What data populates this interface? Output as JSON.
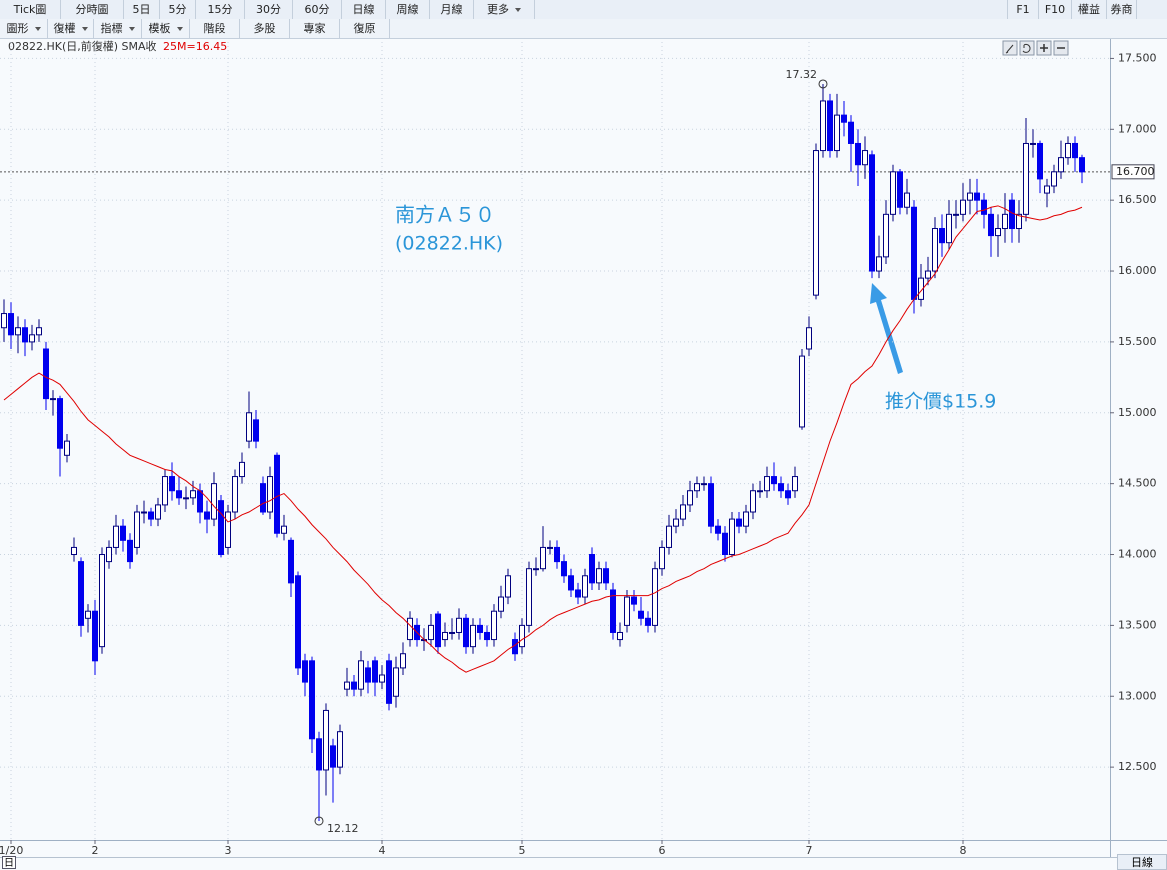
{
  "toolbar": {
    "periods": [
      "Tick圖",
      "分時圖",
      "5日",
      "5分",
      "15分",
      "30分",
      "60分",
      "日線",
      "周線",
      "月線"
    ],
    "more": "更多",
    "right": [
      "F1",
      "F10",
      "權益",
      "券商"
    ],
    "tools": [
      "圖形",
      "復權",
      "指標",
      "模板"
    ],
    "actions": [
      "階段",
      "多股",
      "專家",
      "復原"
    ]
  },
  "chart_data": {
    "type": "candlestick",
    "title": "02822.HK(日,前復權) SMA收",
    "legend_label": "25M=16.45",
    "annotations": [
      "南方Ａ５０",
      "(02822.HK)",
      "推介價$15.9"
    ],
    "categories": [
      null,
      "1/20",
      null,
      null,
      null,
      null,
      null,
      null,
      null,
      null,
      null,
      null,
      null,
      "2",
      null,
      null,
      null,
      null,
      null,
      null,
      null,
      null,
      null,
      null,
      null,
      null,
      null,
      null,
      null,
      null,
      null,
      null,
      "3",
      null,
      null,
      null,
      null,
      null,
      null,
      null,
      null,
      null,
      null,
      null,
      null,
      null,
      null,
      null,
      null,
      null,
      null,
      null,
      null,
      null,
      "4",
      null,
      null,
      null,
      null,
      null,
      null,
      null,
      null,
      null,
      null,
      null,
      null,
      null,
      null,
      null,
      null,
      null,
      null,
      null,
      "5",
      null,
      null,
      null,
      null,
      null,
      null,
      null,
      null,
      null,
      null,
      null,
      null,
      null,
      null,
      null,
      null,
      null,
      null,
      null,
      "6",
      null,
      null,
      null,
      null,
      null,
      null,
      null,
      null,
      null,
      null,
      null,
      null,
      null,
      null,
      null,
      null,
      null,
      null,
      null,
      null,
      "7",
      null,
      null,
      null,
      null,
      null,
      null,
      null,
      null,
      null,
      null,
      null,
      null,
      null,
      null,
      null,
      null,
      null,
      null,
      null,
      null,
      null,
      "8",
      null,
      null,
      null,
      null,
      null,
      null,
      null,
      null,
      null,
      null,
      null,
      null,
      null,
      null,
      null,
      null,
      null
    ],
    "open": [
      15.6,
      15.7,
      15.55,
      15.6,
      15.5,
      15.55,
      15.45,
      15.1,
      15.1,
      14.7,
      14.0,
      13.95,
      13.55,
      13.6,
      13.35,
      13.95,
      14.05,
      14.2,
      14.1,
      14.05,
      14.3,
      14.3,
      14.25,
      14.35,
      14.55,
      14.45,
      14.4,
      14.4,
      14.45,
      14.3,
      14.25,
      14.38,
      14.05,
      14.3,
      14.55,
      14.8,
      14.95,
      14.5,
      14.3,
      14.7,
      14.15,
      14.1,
      13.85,
      13.25,
      13.25,
      12.7,
      12.48,
      12.65,
      12.5,
      13.05,
      13.1,
      13.05,
      13.2,
      13.25,
      13.1,
      13.25,
      13.0,
      13.2,
      13.4,
      13.5,
      13.4,
      13.4,
      13.58,
      13.4,
      13.45,
      13.45,
      13.55,
      13.35,
      13.5,
      13.45,
      13.4,
      13.6,
      13.7,
      13.4,
      13.35,
      13.5,
      13.9,
      13.9,
      14.05,
      14.05,
      13.95,
      13.85,
      13.75,
      13.7,
      14.0,
      13.8,
      13.9,
      13.75,
      13.4,
      13.5,
      13.7,
      13.6,
      13.55,
      13.5,
      13.9,
      14.05,
      14.2,
      14.25,
      14.35,
      14.45,
      14.5,
      14.5,
      14.2,
      14.15,
      14.0,
      14.25,
      14.2,
      14.3,
      14.45,
      14.45,
      14.55,
      14.5,
      14.45,
      14.45,
      14.9,
      15.45,
      15.83,
      16.85,
      17.2,
      16.85,
      17.1,
      17.05,
      16.9,
      16.75,
      16.82,
      16.0,
      16.1,
      16.4,
      16.7,
      16.45,
      16.45,
      15.8,
      15.95,
      16.0,
      16.3,
      16.2,
      16.4,
      16.4,
      16.5,
      16.55,
      16.5,
      16.4,
      16.25,
      16.3,
      16.5,
      16.3,
      16.4,
      16.9,
      16.9,
      16.55,
      16.6,
      16.7,
      16.8,
      16.9,
      16.8
    ],
    "high": [
      15.8,
      15.78,
      15.68,
      15.66,
      15.62,
      15.66,
      15.5,
      15.16,
      15.12,
      14.85,
      14.12,
      13.98,
      13.65,
      13.68,
      14.05,
      14.1,
      14.28,
      14.25,
      14.15,
      14.35,
      14.38,
      14.33,
      14.4,
      14.6,
      14.65,
      14.55,
      14.48,
      14.52,
      14.5,
      14.38,
      14.58,
      14.42,
      14.35,
      14.6,
      14.72,
      15.15,
      15.02,
      14.55,
      14.62,
      14.72,
      14.28,
      14.12,
      13.88,
      13.3,
      13.28,
      12.75,
      12.95,
      12.7,
      12.8,
      13.2,
      13.15,
      13.32,
      13.25,
      13.28,
      13.22,
      13.3,
      13.28,
      13.38,
      13.6,
      13.55,
      13.48,
      13.58,
      13.6,
      13.52,
      13.55,
      13.62,
      13.58,
      13.55,
      13.55,
      13.5,
      13.65,
      13.78,
      13.9,
      13.45,
      13.55,
      13.95,
      13.98,
      14.2,
      14.1,
      14.1,
      14.0,
      13.9,
      13.8,
      13.9,
      14.05,
      13.95,
      13.95,
      13.8,
      13.52,
      13.75,
      13.75,
      13.7,
      13.6,
      13.95,
      14.1,
      14.28,
      14.32,
      14.42,
      14.52,
      14.55,
      14.55,
      14.55,
      14.25,
      14.2,
      14.3,
      14.3,
      14.35,
      14.5,
      14.52,
      14.62,
      14.65,
      14.55,
      14.5,
      14.62,
      15.45,
      15.68,
      16.9,
      17.32,
      17.25,
      17.25,
      17.2,
      17.1,
      17.0,
      16.95,
      16.85,
      16.25,
      16.5,
      16.75,
      16.72,
      16.65,
      16.5,
      16.05,
      16.1,
      16.38,
      16.4,
      16.5,
      16.5,
      16.62,
      16.65,
      16.65,
      16.55,
      16.45,
      16.4,
      16.55,
      16.55,
      16.5,
      17.08,
      17.0,
      16.92,
      16.65,
      16.75,
      16.92,
      16.95,
      16.95,
      16.82
    ],
    "low": [
      15.5,
      15.45,
      15.42,
      15.4,
      15.44,
      15.5,
      15.02,
      14.98,
      14.55,
      14.65,
      13.95,
      13.42,
      13.45,
      13.15,
      13.3,
      13.9,
      14.0,
      14.02,
      13.9,
      14.0,
      14.22,
      14.2,
      14.2,
      14.3,
      14.38,
      14.35,
      14.32,
      14.35,
      14.22,
      14.15,
      14.2,
      13.98,
      14.0,
      14.25,
      14.5,
      14.75,
      14.75,
      14.28,
      14.25,
      14.12,
      14.1,
      13.7,
      13.15,
      13.0,
      12.6,
      12.12,
      12.3,
      12.25,
      12.45,
      13.0,
      13.0,
      13.0,
      13.02,
      13.0,
      13.05,
      12.9,
      12.92,
      13.15,
      13.35,
      13.35,
      13.32,
      13.35,
      13.3,
      13.35,
      13.4,
      13.4,
      13.3,
      13.3,
      13.4,
      13.35,
      13.35,
      13.55,
      13.65,
      13.25,
      13.3,
      13.45,
      13.85,
      13.88,
      14.0,
      13.9,
      13.8,
      13.7,
      13.65,
      13.65,
      13.75,
      13.75,
      13.75,
      13.4,
      13.35,
      13.45,
      13.6,
      13.5,
      13.45,
      13.45,
      13.85,
      14.0,
      14.15,
      14.2,
      14.3,
      14.4,
      14.45,
      14.15,
      14.1,
      13.95,
      13.98,
      14.15,
      14.15,
      14.25,
      14.4,
      14.4,
      14.45,
      14.4,
      14.35,
      14.4,
      14.88,
      15.4,
      15.8,
      16.8,
      16.8,
      16.8,
      16.95,
      16.7,
      16.6,
      16.65,
      15.95,
      15.95,
      16.05,
      16.35,
      16.4,
      16.4,
      15.7,
      15.75,
      15.9,
      15.95,
      16.1,
      16.15,
      16.3,
      16.35,
      16.4,
      16.4,
      16.3,
      16.1,
      16.1,
      16.2,
      16.2,
      16.2,
      16.35,
      16.8,
      16.55,
      16.45,
      16.55,
      16.65,
      16.75,
      16.7,
      16.62
    ],
    "close": [
      15.7,
      15.55,
      15.6,
      15.5,
      15.55,
      15.6,
      15.1,
      15.1,
      14.75,
      14.8,
      14.05,
      13.5,
      13.6,
      13.25,
      14.0,
      14.05,
      14.2,
      14.1,
      13.95,
      14.3,
      14.3,
      14.25,
      14.35,
      14.55,
      14.45,
      14.4,
      14.4,
      14.45,
      14.3,
      14.25,
      14.5,
      14.0,
      14.3,
      14.55,
      14.65,
      15.0,
      14.8,
      14.3,
      14.55,
      14.15,
      14.2,
      13.8,
      13.2,
      13.1,
      12.7,
      12.48,
      12.9,
      12.5,
      12.75,
      13.1,
      13.05,
      13.25,
      13.1,
      13.1,
      13.15,
      12.95,
      13.2,
      13.3,
      13.55,
      13.4,
      13.4,
      13.5,
      13.35,
      13.45,
      13.45,
      13.55,
      13.35,
      13.5,
      13.45,
      13.4,
      13.6,
      13.7,
      13.85,
      13.3,
      13.5,
      13.9,
      13.9,
      14.05,
      14.05,
      13.95,
      13.85,
      13.75,
      13.7,
      13.85,
      13.8,
      13.9,
      13.8,
      13.45,
      13.45,
      13.7,
      13.65,
      13.55,
      13.5,
      13.9,
      14.05,
      14.2,
      14.25,
      14.35,
      14.45,
      14.5,
      14.5,
      14.2,
      14.15,
      14.0,
      14.25,
      14.2,
      14.3,
      14.45,
      14.45,
      14.55,
      14.5,
      14.45,
      14.4,
      14.55,
      15.4,
      15.6,
      16.85,
      17.2,
      16.85,
      17.1,
      17.05,
      16.9,
      16.75,
      16.85,
      16.0,
      16.1,
      16.4,
      16.7,
      16.45,
      16.55,
      15.8,
      15.95,
      16.0,
      16.3,
      16.2,
      16.4,
      16.4,
      16.5,
      16.55,
      16.5,
      16.4,
      16.25,
      16.3,
      16.4,
      16.3,
      16.4,
      16.9,
      16.9,
      16.65,
      16.6,
      16.7,
      16.8,
      16.9,
      16.8,
      16.7
    ],
    "up_color": "#00007f",
    "down_color": "#0000ee",
    "sma": {
      "color": "#e00000",
      "values": [
        15.09,
        15.13,
        15.17,
        15.21,
        15.25,
        15.28,
        15.25,
        15.23,
        15.2,
        15.14,
        15.08,
        15.01,
        14.95,
        14.91,
        14.87,
        14.83,
        14.78,
        14.74,
        14.7,
        14.68,
        14.66,
        14.64,
        14.62,
        14.6,
        14.59,
        14.55,
        14.52,
        14.48,
        14.45,
        14.4,
        14.34,
        14.29,
        14.23,
        14.25,
        14.28,
        14.3,
        14.33,
        14.36,
        14.38,
        14.41,
        14.43,
        14.38,
        14.32,
        14.27,
        14.21,
        14.16,
        14.11,
        14.05,
        14.0,
        13.95,
        13.89,
        13.84,
        13.79,
        13.73,
        13.68,
        13.64,
        13.59,
        13.55,
        13.5,
        13.45,
        13.4,
        13.36,
        13.31,
        13.27,
        13.24,
        13.2,
        13.17,
        13.19,
        13.21,
        13.23,
        13.25,
        13.29,
        13.33,
        13.36,
        13.4,
        13.43,
        13.47,
        13.5,
        13.54,
        13.57,
        13.59,
        13.61,
        13.63,
        13.65,
        13.67,
        13.68,
        13.7,
        13.71,
        13.71,
        13.71,
        13.71,
        13.71,
        13.71,
        13.73,
        13.76,
        13.78,
        13.81,
        13.83,
        13.85,
        13.88,
        13.9,
        13.93,
        13.95,
        13.97,
        13.99,
        14.0,
        14.02,
        14.04,
        14.06,
        14.08,
        14.11,
        14.13,
        14.15,
        14.22,
        14.28,
        14.35,
        14.5,
        14.65,
        14.8,
        14.93,
        15.07,
        15.2,
        15.24,
        15.29,
        15.33,
        15.41,
        15.5,
        15.58,
        15.65,
        15.73,
        15.8,
        15.86,
        15.92,
        15.98,
        16.07,
        16.15,
        16.24,
        16.3,
        16.36,
        16.42,
        16.43,
        16.45,
        16.46,
        16.44,
        16.41,
        16.39,
        16.38,
        16.37,
        16.36,
        16.37,
        16.39,
        16.4,
        16.42,
        16.43,
        16.45
      ]
    },
    "ylim": [
      12.0,
      17.63
    ],
    "yticks": [
      {
        "value": 12.5,
        "label": "12.500"
      },
      {
        "value": 13.0,
        "label": "13.000"
      },
      {
        "value": 13.5,
        "label": "13.500"
      },
      {
        "value": 14.0,
        "label": "14.000"
      },
      {
        "value": 14.5,
        "label": "14.500"
      },
      {
        "value": 15.0,
        "label": "15.000"
      },
      {
        "value": 15.5,
        "label": "15.500"
      },
      {
        "value": 16.0,
        "label": "16.000"
      },
      {
        "value": 16.5,
        "label": "16.500"
      },
      {
        "value": 17.0,
        "label": "17.000"
      },
      {
        "value": 17.5,
        "label": "17.500"
      }
    ],
    "last_price": {
      "value": 16.7,
      "label": "16.700"
    },
    "grid": true
  },
  "footer": {
    "icon": "日",
    "period": "日線"
  }
}
